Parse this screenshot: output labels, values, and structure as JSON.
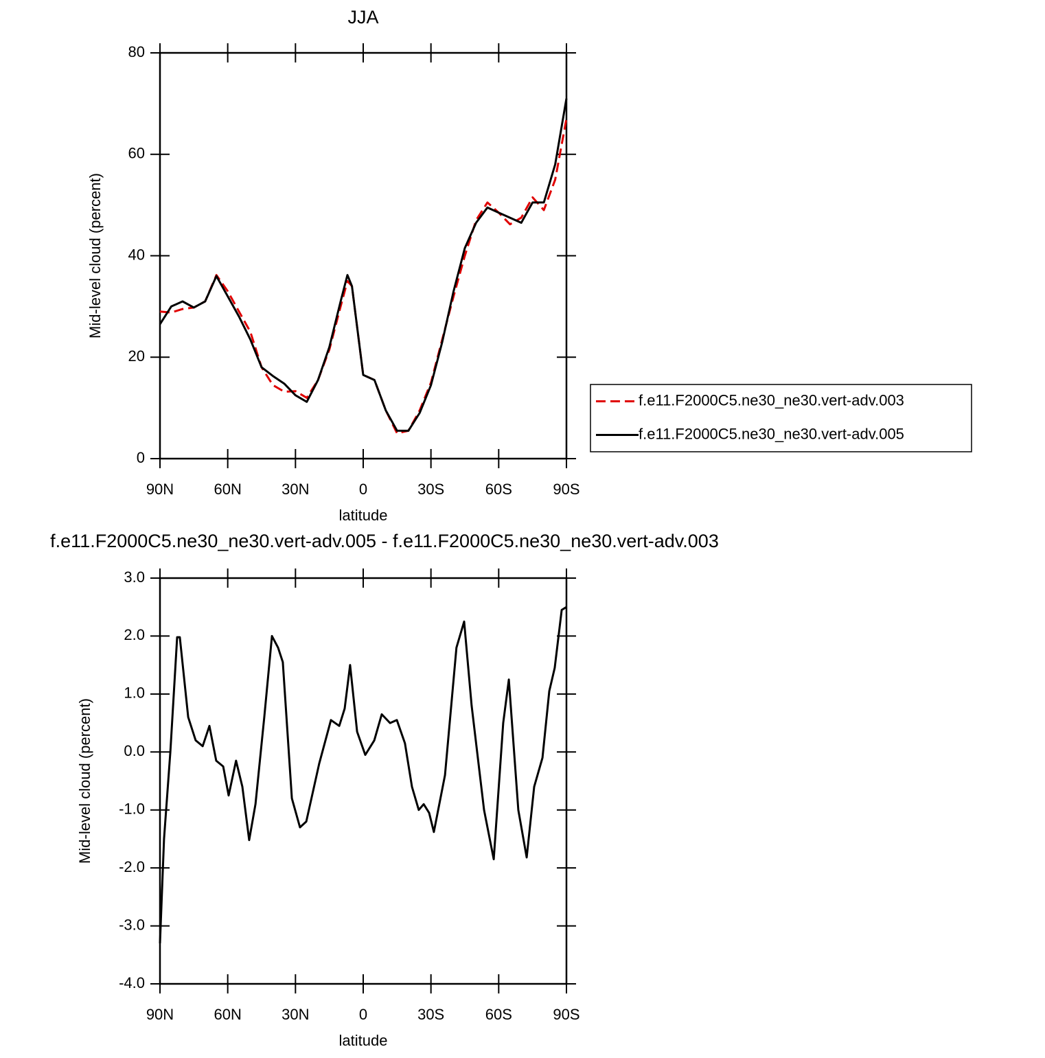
{
  "chart_data": [
    {
      "type": "line",
      "title": "JJA",
      "xlabel": "latitude",
      "ylabel": "Mid-level cloud (percent)",
      "x": [
        90,
        85,
        80,
        75,
        70,
        65,
        60,
        55,
        50,
        45,
        40,
        35,
        30,
        25,
        20,
        15,
        10,
        7,
        5,
        0,
        -5,
        -10,
        -15,
        -20,
        -25,
        -30,
        -35,
        -40,
        -45,
        -50,
        -55,
        -60,
        -65,
        -70,
        -75,
        -80,
        -85,
        -90
      ],
      "series": [
        {
          "name": "f.e11.F2000C5.ne30_ne30.vert-adv.003",
          "color": "#e00000",
          "dashed": true,
          "values": [
            29,
            28.8,
            29.5,
            29.8,
            31,
            36.2,
            33,
            29,
            25,
            18,
            14.5,
            13.2,
            13.3,
            12,
            15.5,
            21.5,
            30,
            35,
            34,
            16.5,
            15.5,
            9.5,
            5,
            5.5,
            9.5,
            15,
            23.5,
            32,
            40,
            47,
            50.5,
            48.5,
            46.2,
            47.5,
            51.5,
            49,
            55,
            67
          ]
        },
        {
          "name": "f.e11.F2000C5.ne30_ne30.vert-adv.005",
          "color": "#000000",
          "dashed": false,
          "values": [
            26.5,
            30,
            31,
            29.8,
            31,
            36,
            32,
            28,
            23.5,
            18,
            16.3,
            14.8,
            12.5,
            11.2,
            15.5,
            22,
            31,
            36.2,
            34,
            16.5,
            15.5,
            9.5,
            5.5,
            5.5,
            9,
            14.5,
            23,
            33,
            41.5,
            46.5,
            49.5,
            48.5,
            47.5,
            46.5,
            50.5,
            50.5,
            58,
            71
          ]
        }
      ],
      "xlim": [
        90,
        -90
      ],
      "xticks": [
        {
          "value": 90,
          "label": "90N"
        },
        {
          "value": 60,
          "label": "60N"
        },
        {
          "value": 30,
          "label": "30N"
        },
        0,
        {
          "value": -30,
          "label": "30S"
        },
        {
          "value": -60,
          "label": "60S"
        },
        {
          "value": -90,
          "label": "90S"
        }
      ],
      "ylim": [
        0,
        80
      ],
      "yticks": [
        0,
        20,
        40,
        60,
        80
      ],
      "legend": "right"
    },
    {
      "type": "line",
      "title": "f.e11.F2000C5.ne30_ne30.vert-adv.005 - f.e11.F2000C5.ne30_ne30.vert-adv.003",
      "xlabel": "latitude",
      "ylabel": "Mid-level cloud (percent)",
      "x": [
        90,
        88.2,
        85.4,
        82.4,
        81.2,
        77.5,
        74.2,
        71.1,
        68.1,
        65.1,
        62,
        59.6,
        56.3,
        53.5,
        50.5,
        47.7,
        43.8,
        40.4,
        37.7,
        35.6,
        31.6,
        28,
        25.2,
        19.5,
        14.3,
        10.6,
        8.2,
        5.8,
        2.7,
        -0.9,
        -4.9,
        -8.2,
        -11.9,
        -14.9,
        -18.5,
        -21.6,
        -24.6,
        -26.8,
        -29.2,
        -31.3,
        -36.2,
        -41.3,
        -44.7,
        -48,
        -53.5,
        -57.8,
        -62,
        -64.5,
        -68.7,
        -72.4,
        -75.7,
        -79.4,
        -82.4,
        -84.8,
        -87.9,
        -90
      ],
      "series": [
        {
          "color": "#000000",
          "dashed": false,
          "values": [
            -3.3,
            -1.5,
            0,
            1.98,
            1.98,
            0.6,
            0.2,
            0.1,
            0.45,
            -0.15,
            -0.25,
            -0.75,
            -0.15,
            -0.6,
            -1.52,
            -0.9,
            0.6,
            2,
            1.8,
            1.55,
            -0.8,
            -1.3,
            -1.2,
            -0.2,
            0.55,
            0.45,
            0.75,
            1.5,
            0.35,
            -0.05,
            0.2,
            0.65,
            0.5,
            0.55,
            0.15,
            -0.6,
            -1,
            -0.9,
            -1.05,
            -1.38,
            -0.4,
            1.8,
            2.25,
            0.8,
            -1,
            -1.85,
            0.5,
            1.25,
            -1,
            -1.82,
            -0.6,
            -0.1,
            1.05,
            1.45,
            2.45,
            2.5
          ]
        }
      ],
      "xlim": [
        90,
        -90
      ],
      "xticks": [
        {
          "value": 90,
          "label": "90N"
        },
        {
          "value": 60,
          "label": "60N"
        },
        {
          "value": 30,
          "label": "30N"
        },
        0,
        {
          "value": -30,
          "label": "30S"
        },
        {
          "value": -60,
          "label": "60S"
        },
        {
          "value": -90,
          "label": "90S"
        }
      ],
      "ylim": [
        -4,
        3
      ],
      "yticks": [
        {
          "value": -4,
          "label": "-4.0"
        },
        {
          "value": -3,
          "label": "-3.0"
        },
        {
          "value": -2,
          "label": "-2.0"
        },
        {
          "value": -1,
          "label": "-1.0"
        },
        {
          "value": 0,
          "label": "0.0"
        },
        {
          "value": 1,
          "label": "1.0"
        },
        {
          "value": 2,
          "label": "2.0"
        },
        {
          "value": 3,
          "label": "3.0"
        }
      ]
    }
  ]
}
